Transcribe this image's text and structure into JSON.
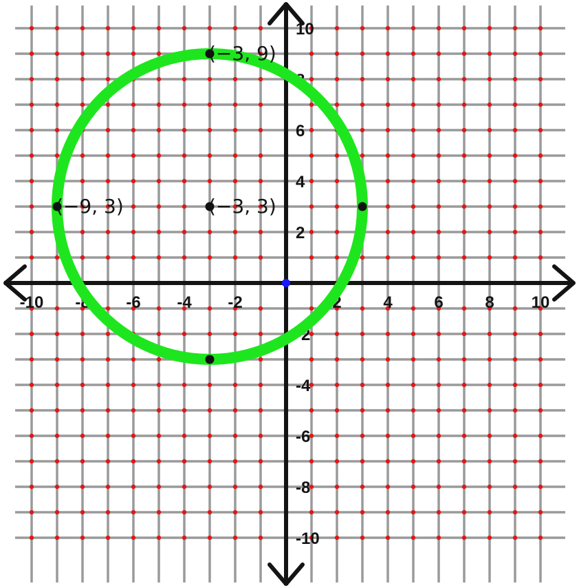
{
  "chart_data": {
    "type": "scatter",
    "title": "",
    "xlabel": "",
    "ylabel": "",
    "xlim": [
      -10,
      10
    ],
    "ylim": [
      -10,
      10
    ],
    "grid": true,
    "x_ticks": [
      -10,
      -8,
      -6,
      -4,
      -2,
      2,
      4,
      6,
      8,
      10
    ],
    "y_ticks": [
      -10,
      -8,
      -6,
      -4,
      -2,
      2,
      4,
      6,
      8,
      10
    ],
    "x_tick_labels": [
      "-10",
      "-8",
      "-6",
      "-4",
      "-2",
      "2",
      "4",
      "6",
      "8",
      "10"
    ],
    "y_tick_labels": [
      "-10",
      "-8",
      "-6",
      "-4",
      "-2",
      "2",
      "4",
      "6",
      "8",
      "10"
    ],
    "circle": {
      "center": [
        -3,
        3
      ],
      "radius": 6,
      "color": "#1ee61e"
    },
    "points": [
      {
        "x": -3,
        "y": 9,
        "label": "(−3, 9)"
      },
      {
        "x": -9,
        "y": 3,
        "label": "(−9, 3)"
      },
      {
        "x": -3,
        "y": 3,
        "label": "(−3, 3)"
      },
      {
        "x": 3,
        "y": 3,
        "label": ""
      },
      {
        "x": -3,
        "y": -3,
        "label": ""
      }
    ],
    "origin": {
      "x": 0,
      "y": 0,
      "color": "#1a1aff"
    },
    "colors": {
      "grid": "#9a9a9a",
      "lattice_dot": "#e01818",
      "axis": "#141414",
      "point": "#111111",
      "text": "#141414"
    }
  }
}
